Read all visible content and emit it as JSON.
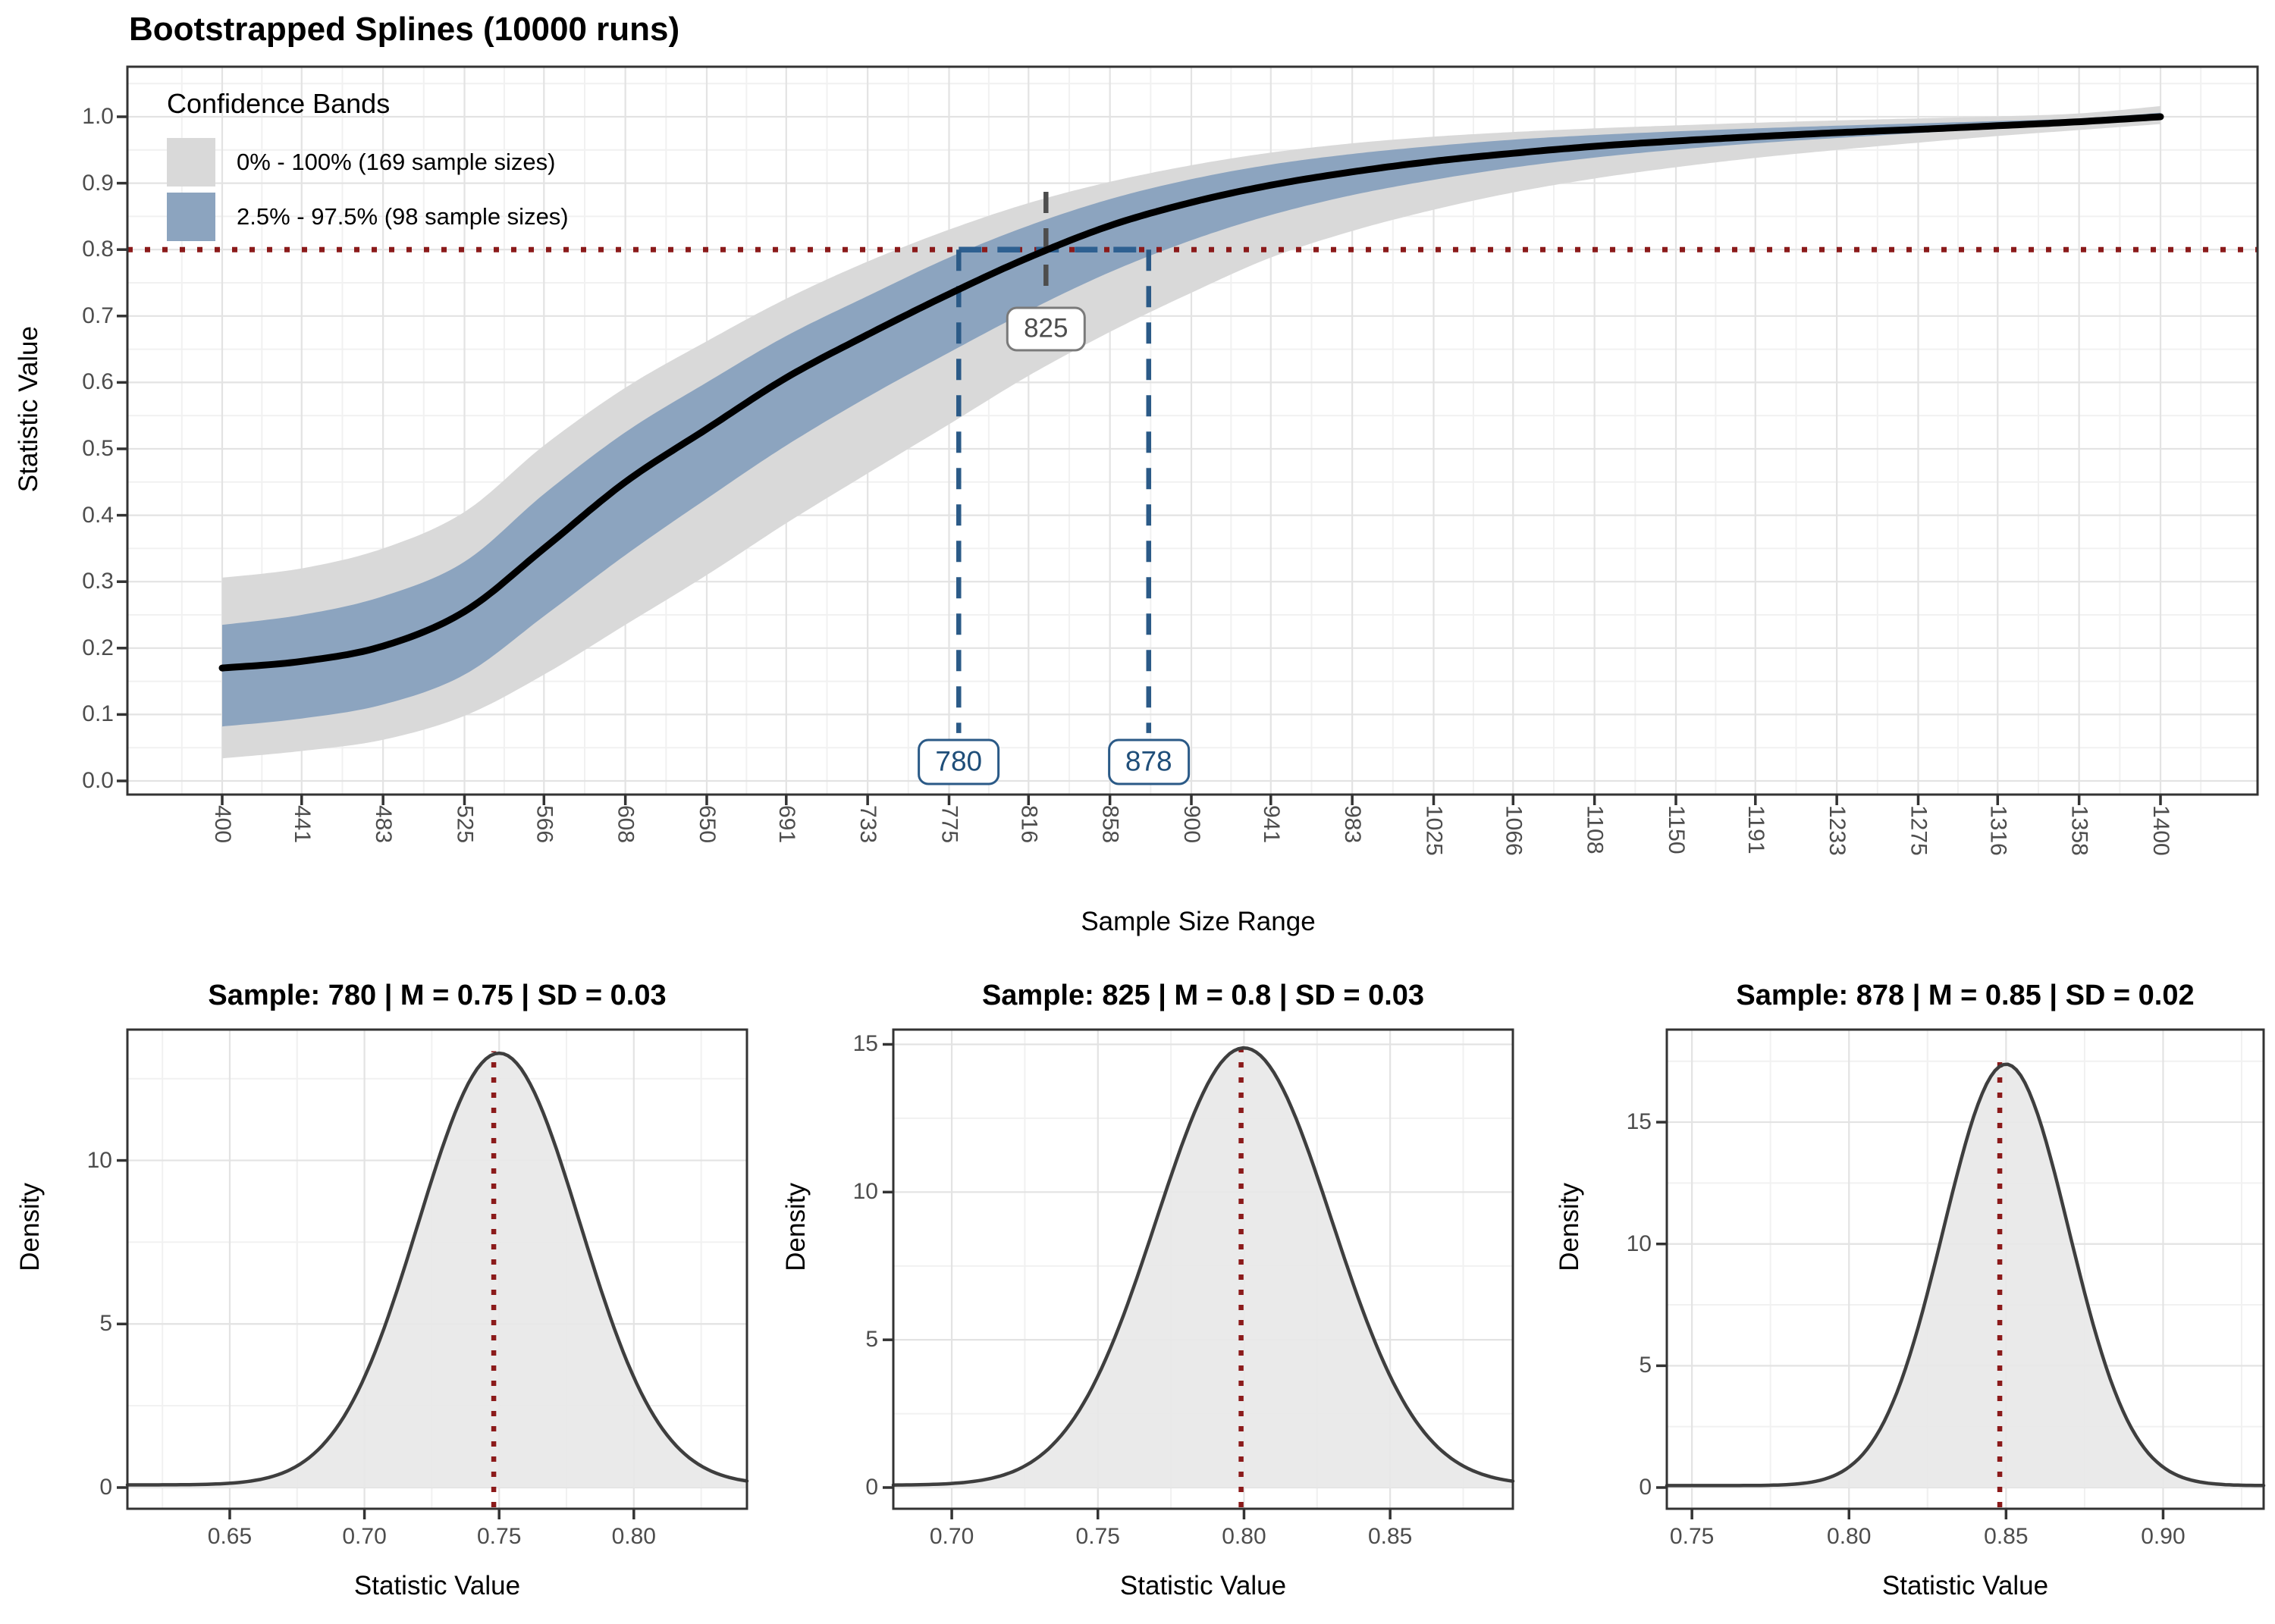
{
  "figure": {
    "background": "#ffffff",
    "kind": "bootstrap-spline-report"
  },
  "chart_data": [
    {
      "id": "main",
      "type": "line",
      "title": "Bootstrapped Splines (10000 runs)",
      "xlabel": "Sample Size Range",
      "ylabel": "Statistic Value",
      "grid": "on",
      "legend_position": "top-left",
      "xlim": [
        400,
        1400
      ],
      "ylim": [
        0,
        1
      ],
      "x_ticks": [
        400,
        441,
        483,
        525,
        566,
        608,
        650,
        691,
        733,
        775,
        816,
        858,
        900,
        941,
        983,
        1025,
        1066,
        1108,
        1150,
        1191,
        1233,
        1275,
        1316,
        1358,
        1400
      ],
      "x_tick_labels": [
        "400",
        "441",
        "483",
        "525",
        "566",
        "608",
        "650",
        "691",
        "733",
        "775",
        "816",
        "858",
        "900",
        "941",
        "983",
        "1025",
        "1066",
        "1108",
        "1150",
        "1191",
        "1233",
        "1275",
        "1316",
        "1358",
        "1400"
      ],
      "y_ticks": [
        0.0,
        0.1,
        0.2,
        0.3,
        0.4,
        0.5,
        0.6,
        0.7,
        0.8,
        0.9,
        1.0
      ],
      "y_tick_labels": [
        "0.0",
        "0.1",
        "0.2",
        "0.3",
        "0.4",
        "0.5",
        "0.6",
        "0.7",
        "0.8",
        "0.9",
        "1.0"
      ],
      "legend": {
        "title": "Confidence Bands",
        "items": [
          {
            "label": "0% - 100% (169 sample sizes)",
            "color": "#D9D9D9"
          },
          {
            "label": "2.5% - 97.5% (98 sample sizes)",
            "color": "#8CA4BF"
          }
        ]
      },
      "series": [
        {
          "name": "mean-spline",
          "color": "#000000",
          "x": [
            400,
            441,
            483,
            525,
            566,
            608,
            650,
            691,
            733,
            775,
            816,
            858,
            900,
            941,
            983,
            1025,
            1066,
            1108,
            1150,
            1191,
            1233,
            1275,
            1316,
            1358,
            1400
          ],
          "y": [
            0.17,
            0.18,
            0.203,
            0.255,
            0.35,
            0.45,
            0.53,
            0.607,
            0.672,
            0.733,
            0.788,
            0.836,
            0.871,
            0.897,
            0.917,
            0.933,
            0.945,
            0.9555,
            0.9635,
            0.97,
            0.976,
            0.981,
            0.9865,
            0.9925,
            1.0
          ]
        },
        {
          "name": "band-0-100",
          "color": "#D9D9D9",
          "upper": [
            0.306,
            0.32,
            0.35,
            0.405,
            0.505,
            0.592,
            0.662,
            0.726,
            0.782,
            0.83,
            0.87,
            0.902,
            0.927,
            0.946,
            0.96,
            0.97,
            0.977,
            0.9825,
            0.987,
            0.991,
            0.9945,
            0.9975,
            1.0005,
            1.005,
            1.016
          ],
          "lower": [
            0.034,
            0.045,
            0.062,
            0.098,
            0.16,
            0.235,
            0.31,
            0.388,
            0.463,
            0.537,
            0.61,
            0.676,
            0.735,
            0.788,
            0.828,
            0.86,
            0.886,
            0.907,
            0.924,
            0.938,
            0.95,
            0.961,
            0.971,
            0.98,
            0.989
          ]
        },
        {
          "name": "band-2.5-97.5",
          "color": "#8CA4BF",
          "upper": [
            0.235,
            0.25,
            0.278,
            0.33,
            0.432,
            0.525,
            0.6,
            0.67,
            0.73,
            0.788,
            0.836,
            0.876,
            0.906,
            0.928,
            0.944,
            0.956,
            0.9655,
            0.9725,
            0.978,
            0.9825,
            0.9865,
            0.99,
            0.9935,
            0.9975,
            1.006
          ],
          "lower": [
            0.082,
            0.094,
            0.115,
            0.16,
            0.248,
            0.34,
            0.425,
            0.505,
            0.578,
            0.645,
            0.708,
            0.766,
            0.814,
            0.852,
            0.882,
            0.905,
            0.9235,
            0.9385,
            0.9505,
            0.96,
            0.968,
            0.9755,
            0.982,
            0.9885,
            0.995
          ]
        }
      ],
      "threshold_line": {
        "y": 0.8,
        "color": "#8B1A1A",
        "style": "dotted"
      },
      "ci_segment": {
        "y": 0.8,
        "x1": 780,
        "x2": 878,
        "color": "#2E6091",
        "style": "dashed"
      },
      "annotations": [
        {
          "label": "825",
          "x": 825,
          "role": "mean-crossing",
          "color": "#4D4D4D",
          "line_color": "#4D4D4D",
          "line_v1": 0.887,
          "line_v2": 0.727,
          "label_v": 0.68
        },
        {
          "label": "780",
          "x": 780,
          "role": "lower-crossing",
          "color": "#1F4E79",
          "line_color": "#2B5A87",
          "line_v1": 0.8,
          "line_v2": 0.072,
          "label_v": 0.028
        },
        {
          "label": "878",
          "x": 878,
          "role": "upper-crossing",
          "color": "#1F4E79",
          "line_color": "#2B5A87",
          "line_v1": 0.8,
          "line_v2": 0.072,
          "label_v": 0.028
        }
      ]
    },
    {
      "id": "density-780",
      "type": "area",
      "title": "Sample: 780 | M = 0.75 | SD = 0.03",
      "xlabel": "Statistic Value",
      "ylabel": "Density",
      "sample": 780,
      "mean": 0.75,
      "sd": 0.03,
      "peak_density": 13.2,
      "xlim": [
        0.612,
        0.842
      ],
      "ylim": [
        0,
        14.0
      ],
      "x_ticks": [
        0.65,
        0.7,
        0.75,
        0.8
      ],
      "x_tick_labels": [
        "0.65",
        "0.70",
        "0.75",
        "0.80"
      ],
      "y_ticks": [
        0,
        5,
        10
      ],
      "y_tick_labels": [
        "0",
        "5",
        "10"
      ],
      "vline": {
        "x": 0.748,
        "color": "#8B1A1A",
        "style": "dotted"
      },
      "curve_color": "#3E3E3E",
      "fill_color": "#E8E8E8"
    },
    {
      "id": "density-825",
      "type": "area",
      "title": "Sample: 825 | M = 0.8 | SD = 0.03",
      "xlabel": "Statistic Value",
      "ylabel": "Density",
      "sample": 825,
      "mean": 0.8,
      "sd": 0.03,
      "peak_density": 14.8,
      "xlim": [
        0.68,
        0.892
      ],
      "ylim": [
        0,
        15.5
      ],
      "x_ticks": [
        0.7,
        0.75,
        0.8,
        0.85
      ],
      "x_tick_labels": [
        "0.70",
        "0.75",
        "0.80",
        "0.85"
      ],
      "y_ticks": [
        0,
        5,
        10,
        15
      ],
      "y_tick_labels": [
        "0",
        "5",
        "10",
        "15"
      ],
      "vline": {
        "x": 0.799,
        "color": "#8B1A1A",
        "style": "dotted"
      },
      "curve_color": "#3E3E3E",
      "fill_color": "#E8E8E8"
    },
    {
      "id": "density-878",
      "type": "area",
      "title": "Sample: 878 | M = 0.85 | SD = 0.02",
      "xlabel": "Statistic Value",
      "ylabel": "Density",
      "sample": 878,
      "mean": 0.85,
      "sd": 0.02,
      "peak_density": 17.3,
      "xlim": [
        0.742,
        0.932
      ],
      "ylim": [
        0,
        18.8
      ],
      "x_ticks": [
        0.75,
        0.8,
        0.85,
        0.9
      ],
      "x_tick_labels": [
        "0.75",
        "0.80",
        "0.85",
        "0.90"
      ],
      "y_ticks": [
        0,
        5,
        10,
        15
      ],
      "y_tick_labels": [
        "0",
        "5",
        "10",
        "15"
      ],
      "vline": {
        "x": 0.848,
        "color": "#8B1A1A",
        "style": "dotted"
      },
      "curve_color": "#3E3E3E",
      "fill_color": "#E8E8E8"
    }
  ]
}
